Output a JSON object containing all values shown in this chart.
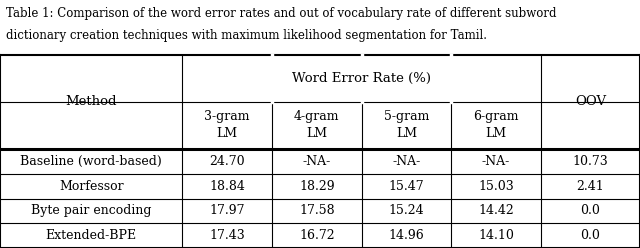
{
  "title_line1": "Table 1: Comparison of the word error rates and out of vocabulary rate of different subword",
  "title_line2": "dictionary creation techniques with maximum likelihood segmentation for Tamil.",
  "col_header_main": "Word Error Rate (%)",
  "col_headers": [
    "3-gram\nLM",
    "4-gram\nLM",
    "5-gram\nLM",
    "6-gram\nLM",
    "OOV"
  ],
  "row_header": "Method",
  "rows": [
    [
      "Baseline (word-based)",
      "24.70",
      "-NA-",
      "-NA-",
      "-NA-",
      "10.73"
    ],
    [
      "Morfessor",
      "18.84",
      "18.29",
      "15.47",
      "15.03",
      "2.41"
    ],
    [
      "Byte pair encoding",
      "17.97",
      "17.58",
      "15.24",
      "14.42",
      "0.0"
    ],
    [
      "Extended-BPE",
      "17.43",
      "16.72",
      "14.96",
      "14.10",
      "0.0"
    ]
  ],
  "bg_color": "#ffffff",
  "text_color": "#000000",
  "font_size": 9,
  "title_font_size": 8.5
}
